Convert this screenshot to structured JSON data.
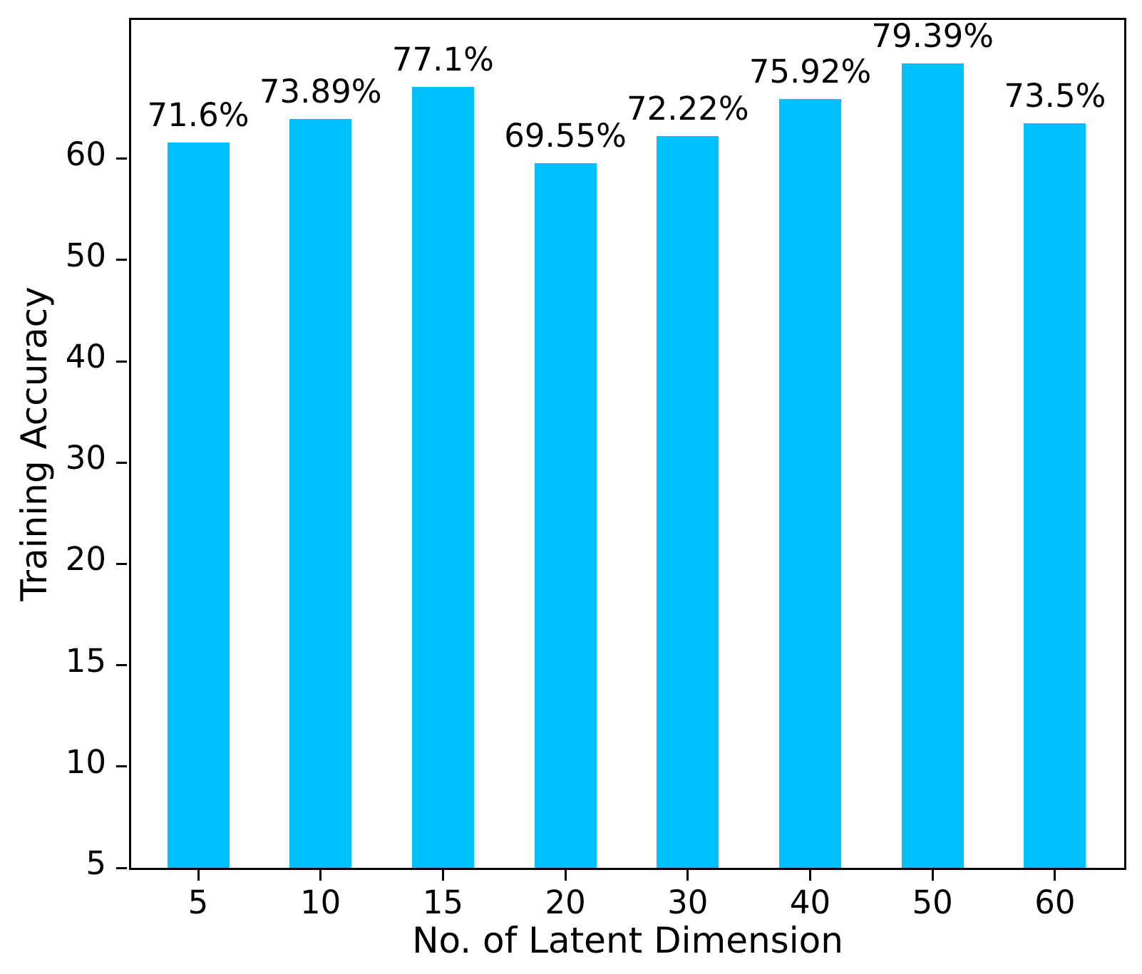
{
  "chart_data": {
    "type": "bar",
    "title": "",
    "xlabel": "No. of Latent Dimension",
    "ylabel": "Training Accuracy",
    "categories": [
      "5",
      "10",
      "15",
      "20",
      "30",
      "40",
      "50",
      "60"
    ],
    "values": [
      71.6,
      73.89,
      77.1,
      69.55,
      72.22,
      75.92,
      79.39,
      73.5
    ],
    "bar_labels": [
      "71.6%",
      "73.89%",
      "77.1%",
      "69.55%",
      "72.22%",
      "75.92%",
      "79.39%",
      "73.5%"
    ],
    "y_axis": {
      "tick_labels": [
        "5",
        "10",
        "15",
        "20",
        "30",
        "40",
        "50",
        "60"
      ],
      "tick_positions": [
        0,
        10,
        20,
        30,
        40,
        50,
        60,
        70
      ],
      "ylim": [
        0,
        83.7
      ]
    },
    "colors": {
      "bar_fill": "#00BFFF",
      "axis": "#000000",
      "text": "#000000"
    },
    "grid": false,
    "legend": null
  }
}
